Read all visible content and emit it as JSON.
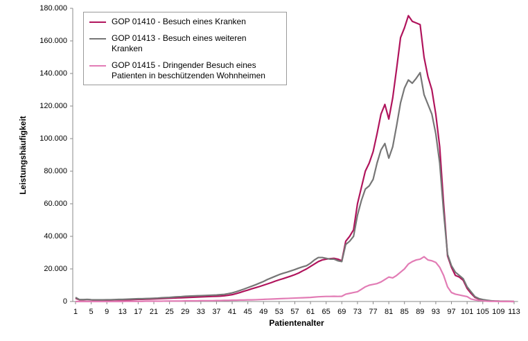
{
  "chart_data": {
    "type": "line",
    "xlabel": "Patientenalter",
    "ylabel": "Leistungshäufigkeit",
    "x": [
      1,
      2,
      3,
      4,
      5,
      6,
      7,
      8,
      9,
      10,
      11,
      12,
      13,
      14,
      15,
      16,
      17,
      18,
      19,
      20,
      21,
      22,
      23,
      24,
      25,
      26,
      27,
      28,
      29,
      30,
      31,
      32,
      33,
      34,
      35,
      36,
      37,
      38,
      39,
      40,
      41,
      42,
      43,
      44,
      45,
      46,
      47,
      48,
      49,
      50,
      51,
      52,
      53,
      54,
      55,
      56,
      57,
      58,
      59,
      60,
      61,
      62,
      63,
      64,
      65,
      66,
      67,
      68,
      69,
      70,
      71,
      72,
      73,
      74,
      75,
      76,
      77,
      78,
      79,
      80,
      81,
      82,
      83,
      84,
      85,
      86,
      87,
      88,
      89,
      90,
      91,
      92,
      93,
      94,
      95,
      96,
      97,
      98,
      99,
      100,
      101,
      102,
      103,
      104,
      105,
      106,
      107,
      108,
      109,
      110,
      111,
      112,
      113
    ],
    "xlim": [
      1,
      114
    ],
    "xticks": [
      1,
      5,
      9,
      13,
      17,
      21,
      25,
      29,
      33,
      37,
      41,
      45,
      49,
      53,
      57,
      61,
      65,
      69,
      73,
      77,
      81,
      85,
      89,
      93,
      97,
      101,
      105,
      109,
      113
    ],
    "ylim": [
      0,
      180000
    ],
    "yticks": [
      0,
      {
        "value": 20000,
        "label": "20.000"
      },
      {
        "value": 40000,
        "label": "40.000"
      },
      {
        "value": 60000,
        "label": "60.000"
      },
      {
        "value": 80000,
        "label": "80.000"
      },
      {
        "value": 100000,
        "label": "100.000"
      },
      {
        "value": 120000,
        "label": "120.000"
      },
      {
        "value": 140000,
        "label": "140.000"
      },
      {
        "value": 160000,
        "label": "160.000"
      },
      {
        "value": 180000,
        "label": "180.000"
      }
    ],
    "series": [
      {
        "name": "GOP 01410 - Besuch eines Kranken",
        "color": "#b0145c",
        "values": [
          2000,
          1000,
          1000,
          1200,
          1000,
          800,
          800,
          800,
          900,
          900,
          1000,
          1000,
          1000,
          1000,
          1100,
          1200,
          1300,
          1300,
          1400,
          1500,
          1600,
          1700,
          1800,
          1900,
          2000,
          2100,
          2200,
          2300,
          2400,
          2500,
          2600,
          2700,
          2800,
          2900,
          3000,
          3100,
          3200,
          3300,
          3500,
          3800,
          4200,
          4800,
          5500,
          6300,
          7000,
          7800,
          8500,
          9200,
          10000,
          10800,
          11600,
          12500,
          13300,
          14000,
          14800,
          15600,
          16500,
          17500,
          18800,
          20000,
          21500,
          23000,
          24500,
          25500,
          26000,
          26300,
          26500,
          26000,
          25000,
          37000,
          40000,
          44000,
          60000,
          70000,
          80000,
          85000,
          92000,
          103000,
          115000,
          121000,
          112000,
          125000,
          143000,
          162000,
          168000,
          175500,
          172000,
          171000,
          170000,
          150000,
          138000,
          130000,
          115000,
          95000,
          60000,
          28000,
          21000,
          16000,
          15000,
          13000,
          8000,
          5000,
          2500,
          1500,
          1000,
          600,
          400,
          300,
          200,
          100,
          100,
          50,
          0
        ]
      },
      {
        "name": "GOP 01413 - Besuch eines weiteren Kranken",
        "color": "#767676",
        "values": [
          2500,
          1200,
          1200,
          1300,
          1100,
          1000,
          1000,
          1000,
          1100,
          1100,
          1200,
          1300,
          1300,
          1400,
          1500,
          1600,
          1700,
          1700,
          1800,
          1900,
          2000,
          2100,
          2300,
          2400,
          2500,
          2700,
          2900,
          3000,
          3200,
          3300,
          3400,
          3500,
          3600,
          3700,
          3800,
          3900,
          4000,
          4200,
          4400,
          4800,
          5300,
          6000,
          6800,
          7600,
          8500,
          9400,
          10300,
          11300,
          12300,
          13500,
          14500,
          15500,
          16500,
          17300,
          18000,
          18800,
          19600,
          20500,
          21300,
          22000,
          23500,
          25500,
          27000,
          27000,
          26500,
          26000,
          26000,
          25000,
          24500,
          35000,
          37000,
          40000,
          53000,
          62000,
          69000,
          71000,
          75000,
          85000,
          93000,
          97000,
          88000,
          95000,
          108000,
          122000,
          131000,
          136000,
          134000,
          137000,
          140500,
          127000,
          121000,
          115000,
          103000,
          85000,
          55000,
          29000,
          22000,
          18000,
          16000,
          14000,
          9000,
          6000,
          3000,
          1800,
          1200,
          800,
          500,
          300,
          200,
          100,
          100,
          50,
          0
        ]
      },
      {
        "name": "GOP 01415 - Dringender Besuch eines Patienten in beschützenden Wohnheimen",
        "color": "#e27cb5",
        "values": [
          0,
          0,
          0,
          0,
          0,
          0,
          0,
          0,
          0,
          0,
          0,
          0,
          0,
          100,
          100,
          100,
          100,
          100,
          200,
          200,
          200,
          200,
          200,
          300,
          300,
          300,
          300,
          300,
          400,
          400,
          400,
          400,
          500,
          500,
          500,
          500,
          600,
          600,
          700,
          700,
          800,
          800,
          900,
          900,
          1000,
          1000,
          1100,
          1200,
          1300,
          1400,
          1500,
          1600,
          1700,
          1800,
          1900,
          2000,
          2100,
          2200,
          2300,
          2400,
          2500,
          2700,
          2900,
          3000,
          3100,
          3100,
          3200,
          3100,
          3200,
          4500,
          5000,
          5500,
          6000,
          7500,
          9000,
          10000,
          10500,
          11000,
          12000,
          13500,
          15000,
          14500,
          16000,
          18000,
          20000,
          23000,
          24500,
          25500,
          26000,
          27500,
          25500,
          25000,
          24000,
          21000,
          16000,
          9000,
          5500,
          4500,
          4000,
          3500,
          3000,
          1500,
          1000,
          600,
          400,
          200,
          100,
          100,
          50,
          0,
          0,
          0,
          0
        ]
      }
    ]
  }
}
